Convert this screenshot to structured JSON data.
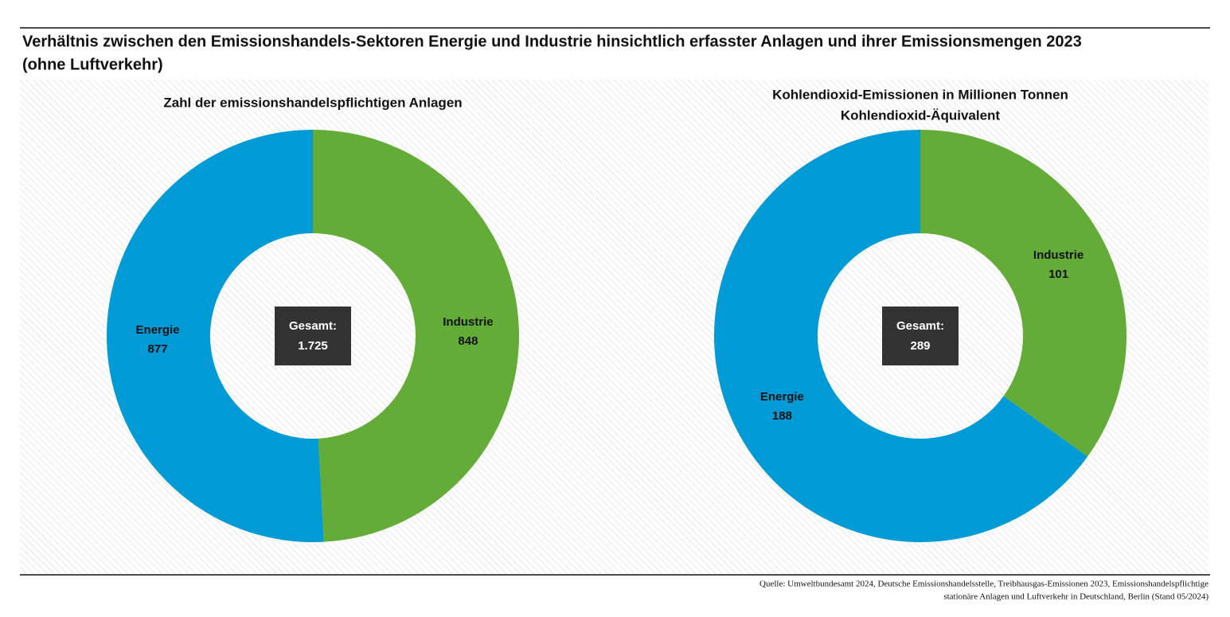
{
  "title": [
    "Verhältnis zwischen den Emissionshandels-Sektoren Energie und Industrie hinsichtlich erfasster Anlagen und ihrer Emissionsmengen 2023",
    "(ohne Luftverkehr)"
  ],
  "source": [
    "Quelle: Umweltbundesamt 2024, Deutsche Emissionshandelsstelle, Treibhausgas-Emissionen 2023, Emissionshandelspflichtige",
    "stationäre Anlagen und Luftverkehr in Deutschland, Berlin (Stand 05/2024)"
  ],
  "chart_data": [
    {
      "type": "donut",
      "title": [
        "Zahl der emissionshandelspflichtigen Anlagen"
      ],
      "categories": [
        "Industrie",
        "Energie"
      ],
      "values": [
        848,
        877
      ],
      "colors": [
        "#62ac37",
        "#009ad6"
      ],
      "total_label": "Gesamt:",
      "total": {
        "value": 1725,
        "label": "1.725"
      }
    },
    {
      "type": "donut",
      "title": [
        "Kohlendioxid-Emissionen in Millionen Tonnen",
        "Kohlendioxid-Äquivalent"
      ],
      "categories": [
        "Industrie",
        "Energie"
      ],
      "values": [
        101,
        188
      ],
      "colors": [
        "#62ac37",
        "#009ad6"
      ],
      "total_label": "Gesamt:",
      "total": 289
    }
  ]
}
